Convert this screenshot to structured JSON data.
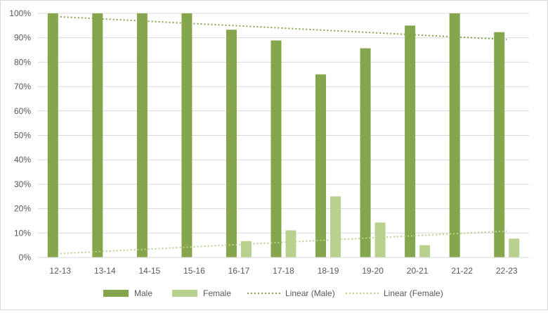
{
  "chart_data": {
    "type": "bar",
    "categories": [
      "12-13",
      "13-14",
      "14-15",
      "15-16",
      "16-17",
      "17-18",
      "18-19",
      "19-20",
      "20-21",
      "21-22",
      "22-23"
    ],
    "series": [
      {
        "name": "Male",
        "values": [
          100,
          100,
          100,
          100,
          93.3,
          88.9,
          75,
          85.7,
          95,
          100,
          92.3
        ],
        "color": "#86a64e"
      },
      {
        "name": "Female",
        "values": [
          0,
          0,
          0,
          0,
          6.7,
          11.1,
          25,
          14.3,
          5,
          0,
          7.7
        ],
        "color": "#b9d18e"
      }
    ],
    "trendlines": [
      {
        "name": "Linear (Male)",
        "kind": "linear",
        "start": 98.6,
        "end": 89.3,
        "color": "#86a64e"
      },
      {
        "name": "Linear (Female)",
        "kind": "linear",
        "start": 1.6,
        "end": 10.8,
        "color": "#b9d18e"
      }
    ],
    "ylim": [
      0,
      100
    ],
    "yticks": [
      "0%",
      "10%",
      "20%",
      "30%",
      "40%",
      "50%",
      "60%",
      "70%",
      "80%",
      "90%",
      "100%"
    ],
    "title": "",
    "xlabel": "",
    "ylabel": "",
    "grid": true,
    "legend": "bottom"
  }
}
